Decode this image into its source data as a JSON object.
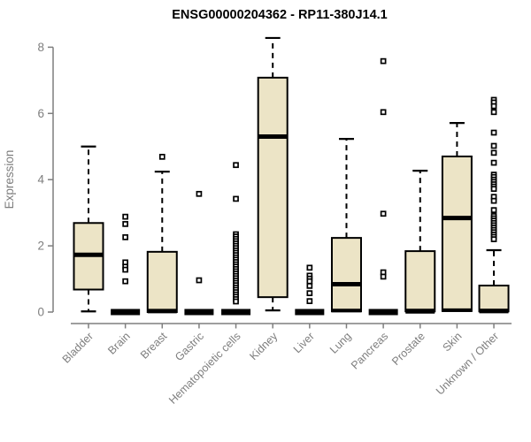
{
  "chart_data": {
    "type": "boxplot",
    "title": "ENSG00000204362 - RP11-380J14.1",
    "xlabel": "",
    "ylabel": "Expression",
    "ylim": [
      0,
      8
    ],
    "yticks": [
      0,
      2,
      4,
      6,
      8
    ],
    "grid": false,
    "legend": null,
    "categories": [
      "Bladder",
      "Brain",
      "Breast",
      "Gastric",
      "Hematopoietic cells",
      "Kidney",
      "Liver",
      "Lung",
      "Pancreas",
      "Prostate",
      "Skin",
      "Unknown / Other"
    ],
    "series": [
      {
        "category": "Bladder",
        "low": 0.02,
        "q1": 0.68,
        "median": 1.73,
        "q3": 2.69,
        "high": 5.0,
        "outliers": []
      },
      {
        "category": "Brain",
        "low": 0,
        "q1": 0,
        "median": 0,
        "q3": 0,
        "high": 0,
        "outliers": [
          2.88,
          2.66,
          2.26,
          1.5,
          1.37,
          1.28,
          0.93
        ]
      },
      {
        "category": "Breast",
        "low": 0,
        "q1": 0,
        "median": 0.03,
        "q3": 1.82,
        "high": 4.24,
        "outliers": [
          4.69
        ]
      },
      {
        "category": "Gastric",
        "low": 0,
        "q1": 0,
        "median": 0,
        "q3": 0,
        "high": 0,
        "outliers": [
          3.57,
          0.96
        ]
      },
      {
        "category": "Hematopoietic cells",
        "low": 0,
        "q1": 0,
        "median": 0,
        "q3": 0,
        "high": 0,
        "outliers": [
          4.44,
          3.42,
          2.35,
          2.28,
          2.21,
          2.14,
          2.07,
          2.0,
          1.93,
          1.86,
          1.79,
          1.72,
          1.65,
          1.58,
          1.51,
          1.44,
          1.37,
          1.3,
          1.23,
          1.16,
          1.09,
          1.02,
          0.95,
          0.88,
          0.81,
          0.74,
          0.67,
          0.6,
          0.53,
          0.46,
          0.39,
          0.32
        ]
      },
      {
        "category": "Kidney",
        "low": 0.05,
        "q1": 0.45,
        "median": 5.3,
        "q3": 7.08,
        "high": 8.28,
        "outliers": []
      },
      {
        "category": "Liver",
        "low": 0,
        "q1": 0,
        "median": 0,
        "q3": 0,
        "high": 0,
        "outliers": [
          1.34,
          1.1,
          1.01,
          0.93,
          0.79,
          0.57,
          0.33
        ]
      },
      {
        "category": "Lung",
        "low": 0,
        "q1": 0.02,
        "median": 0.84,
        "q3": 2.24,
        "high": 5.23,
        "outliers": []
      },
      {
        "category": "Pancreas",
        "low": 0,
        "q1": 0,
        "median": 0,
        "q3": 0,
        "high": 0,
        "outliers": [
          7.58,
          6.04,
          2.97,
          1.2,
          1.07
        ]
      },
      {
        "category": "Prostate",
        "low": 0,
        "q1": 0.02,
        "median": 0.02,
        "q3": 1.84,
        "high": 4.27,
        "outliers": []
      },
      {
        "category": "Skin",
        "low": 0,
        "q1": 0.03,
        "median": 2.84,
        "q3": 4.7,
        "high": 5.71,
        "outliers": []
      },
      {
        "category": "Unknown / Other",
        "low": 0,
        "q1": 0.02,
        "median": 0.03,
        "q3": 0.8,
        "high": 1.87,
        "outliers": [
          6.41,
          6.33,
          6.22,
          6.04,
          5.42,
          5.02,
          4.81,
          4.51,
          4.15,
          4.08,
          4.0,
          3.93,
          3.86,
          3.79,
          3.72,
          3.48,
          3.36,
          3.08,
          2.9,
          2.83,
          2.76,
          2.69,
          2.62,
          2.55,
          2.48,
          2.41,
          2.34,
          2.27,
          2.2
        ]
      }
    ],
    "colors": {
      "box_fill": "#ECE4C6",
      "box_stroke": "#000000",
      "median": "#000000",
      "whisker": "#000000",
      "outlier_stroke": "#000000",
      "outlier_fill": "#FFFFFF",
      "axis": "#7E7E7E",
      "tick_label": "#7E7E7E",
      "title": "#000000",
      "background": "#FFFFFF"
    }
  }
}
